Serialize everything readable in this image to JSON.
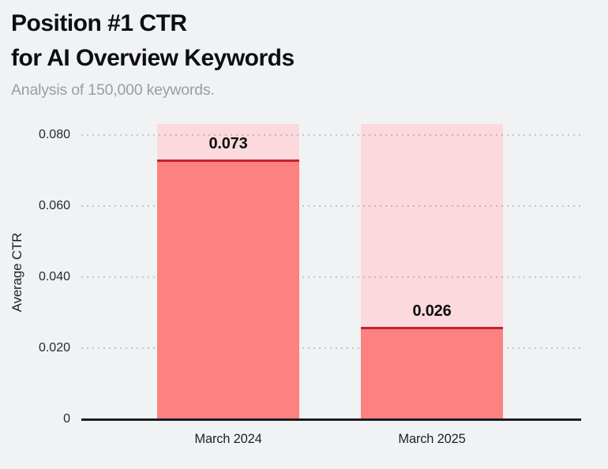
{
  "page": {
    "background": "#f1f2f4"
  },
  "header": {
    "title_line1": "Position #1 CTR",
    "title_line2": "for AI Overview Keywords",
    "subtitle": "Analysis of 150,000 keywords."
  },
  "chart_data": {
    "type": "bar",
    "title": "Position #1 CTR for AI Overview Keywords",
    "subtitle": "Analysis of 150,000 keywords.",
    "categories": [
      "March 2024",
      "March 2025"
    ],
    "values": [
      0.073,
      0.026
    ],
    "value_labels": [
      "0.073",
      "0.026"
    ],
    "xlabel": "",
    "ylabel": "Average CTR",
    "ylim": [
      0,
      0.083
    ],
    "yticks": [
      0,
      0.02,
      0.04,
      0.06,
      0.08
    ],
    "ytick_labels": [
      "0",
      "0.020",
      "0.040",
      "0.060",
      "0.080"
    ],
    "grid": "dotted horizontal gridlines",
    "legend": "none",
    "bar_style": "full-height light track with solid fill up to value and dark top rule",
    "colors": {
      "background": "#f1f2f4",
      "bar_fill": "#fc8181",
      "bar_track": "#fcd9dc",
      "bar_top_line": "#c22130",
      "gridline": "#cfd0d4",
      "axis": "#1b1d1f",
      "title_text": "#0d0e10",
      "subtitle_text": "#9b9da3",
      "tick_text": "#26282b"
    }
  }
}
